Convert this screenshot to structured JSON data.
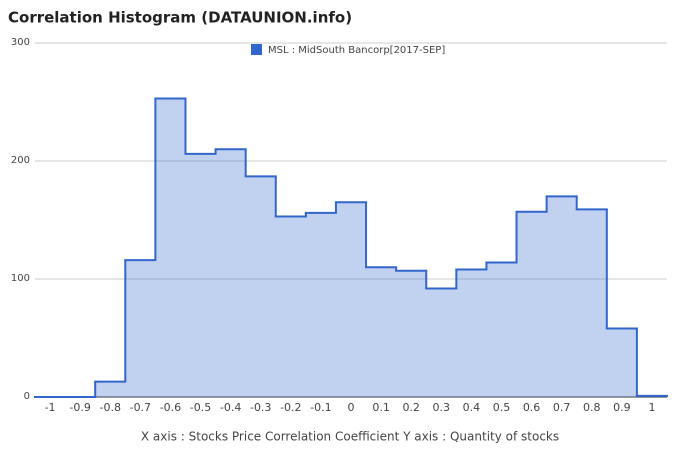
{
  "chart_data": {
    "type": "histogram",
    "title": "Correlation Histogram (DATAUNION.info)",
    "x_label": "X axis : Stocks Price Correlation Coefficient  Y axis : Quantity of stocks",
    "series": [
      {
        "name": "MSL : MidSouth Bancorp[2017-SEP]",
        "color": "#3366cc",
        "bins": [
          -1.05,
          -0.95,
          -0.85,
          -0.75,
          -0.65,
          -0.55,
          -0.45,
          -0.35,
          -0.25,
          -0.15,
          -0.05,
          0.05,
          0.15,
          0.25,
          0.35,
          0.45,
          0.55,
          0.65,
          0.75,
          0.85,
          0.95,
          1.05
        ],
        "values": [
          0,
          0,
          13,
          116,
          253,
          206,
          210,
          187,
          153,
          156,
          165,
          110,
          107,
          92,
          108,
          114,
          157,
          170,
          159,
          58,
          1
        ]
      }
    ],
    "xlim": [
      -1.05,
      1.05
    ],
    "xticks": [
      -1,
      -0.9,
      -0.8,
      -0.7,
      -0.6,
      -0.5,
      -0.4,
      -0.3,
      -0.2,
      -0.1,
      0,
      0.1,
      0.2,
      0.3,
      0.4,
      0.5,
      0.6,
      0.7,
      0.8,
      0.9,
      1
    ],
    "ylim": [
      0,
      300
    ],
    "yticks": [
      0,
      100,
      200,
      300
    ],
    "grid": true
  }
}
